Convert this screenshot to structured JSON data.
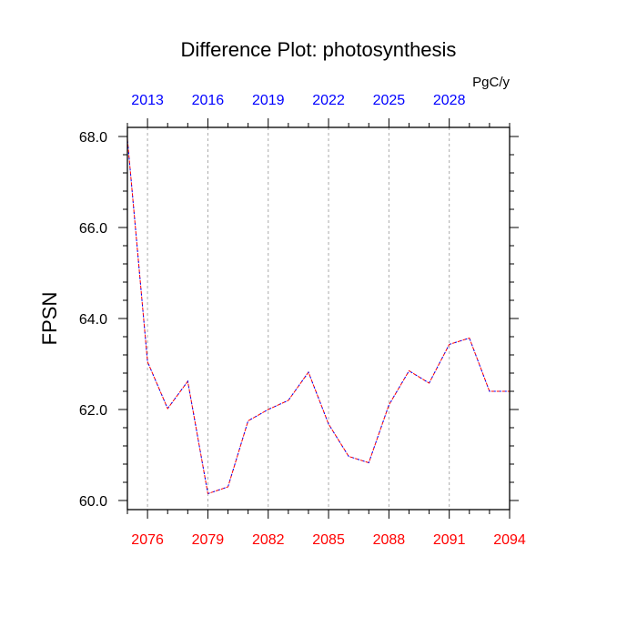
{
  "chart_data": {
    "type": "line",
    "title": "Difference Plot: photosynthesis",
    "units": "PgC/y",
    "ylabel": "FPSN",
    "xlabel": "",
    "ylim": [
      59.8,
      68.2
    ],
    "xlim": [
      2075,
      2094
    ],
    "yticks": [
      60.0,
      62.0,
      64.0,
      66.0,
      68.0
    ],
    "ytick_labels": [
      "60.0",
      "62.0",
      "64.0",
      "66.0",
      "68.0"
    ],
    "bottom_axis": {
      "ticks": [
        2076,
        2079,
        2082,
        2085,
        2088,
        2091,
        2094
      ],
      "labels": [
        "2076",
        "2079",
        "2082",
        "2085",
        "2088",
        "2091",
        "2094"
      ],
      "color": "#ff0000"
    },
    "top_axis": {
      "ticks": [
        2013,
        2016,
        2019,
        2022,
        2025,
        2028
      ],
      "labels": [
        "2013",
        "2016",
        "2019",
        "2022",
        "2025",
        "2028"
      ],
      "offset_years": 63,
      "color": "#0000ff"
    },
    "grid": "vertical dashed at major ticks",
    "series": [
      {
        "color": "#ff0000",
        "dash": "dashed",
        "x": [
          2075,
          2076,
          2077,
          2078,
          2079,
          2080,
          2081,
          2082,
          2083,
          2084,
          2085,
          2086,
          2087,
          2088,
          2089,
          2090,
          2091,
          2092,
          2093,
          2094
        ],
        "y": [
          67.95,
          63.05,
          62.02,
          62.62,
          60.15,
          60.3,
          61.75,
          62.0,
          62.2,
          62.82,
          61.68,
          60.97,
          60.83,
          62.1,
          62.85,
          62.58,
          63.43,
          63.57,
          62.4,
          62.4
        ]
      },
      {
        "color": "#0000ff",
        "dash": "dashed",
        "x": [
          2075,
          2076,
          2077,
          2078,
          2079,
          2080,
          2081,
          2082,
          2083,
          2084,
          2085,
          2086,
          2087,
          2088,
          2089,
          2090,
          2091,
          2092,
          2093,
          2094
        ],
        "y": [
          67.95,
          63.05,
          62.02,
          62.62,
          60.15,
          60.3,
          61.75,
          62.0,
          62.2,
          62.82,
          61.68,
          60.97,
          60.83,
          62.1,
          62.85,
          62.58,
          63.43,
          63.57,
          62.4,
          62.4
        ]
      }
    ]
  }
}
